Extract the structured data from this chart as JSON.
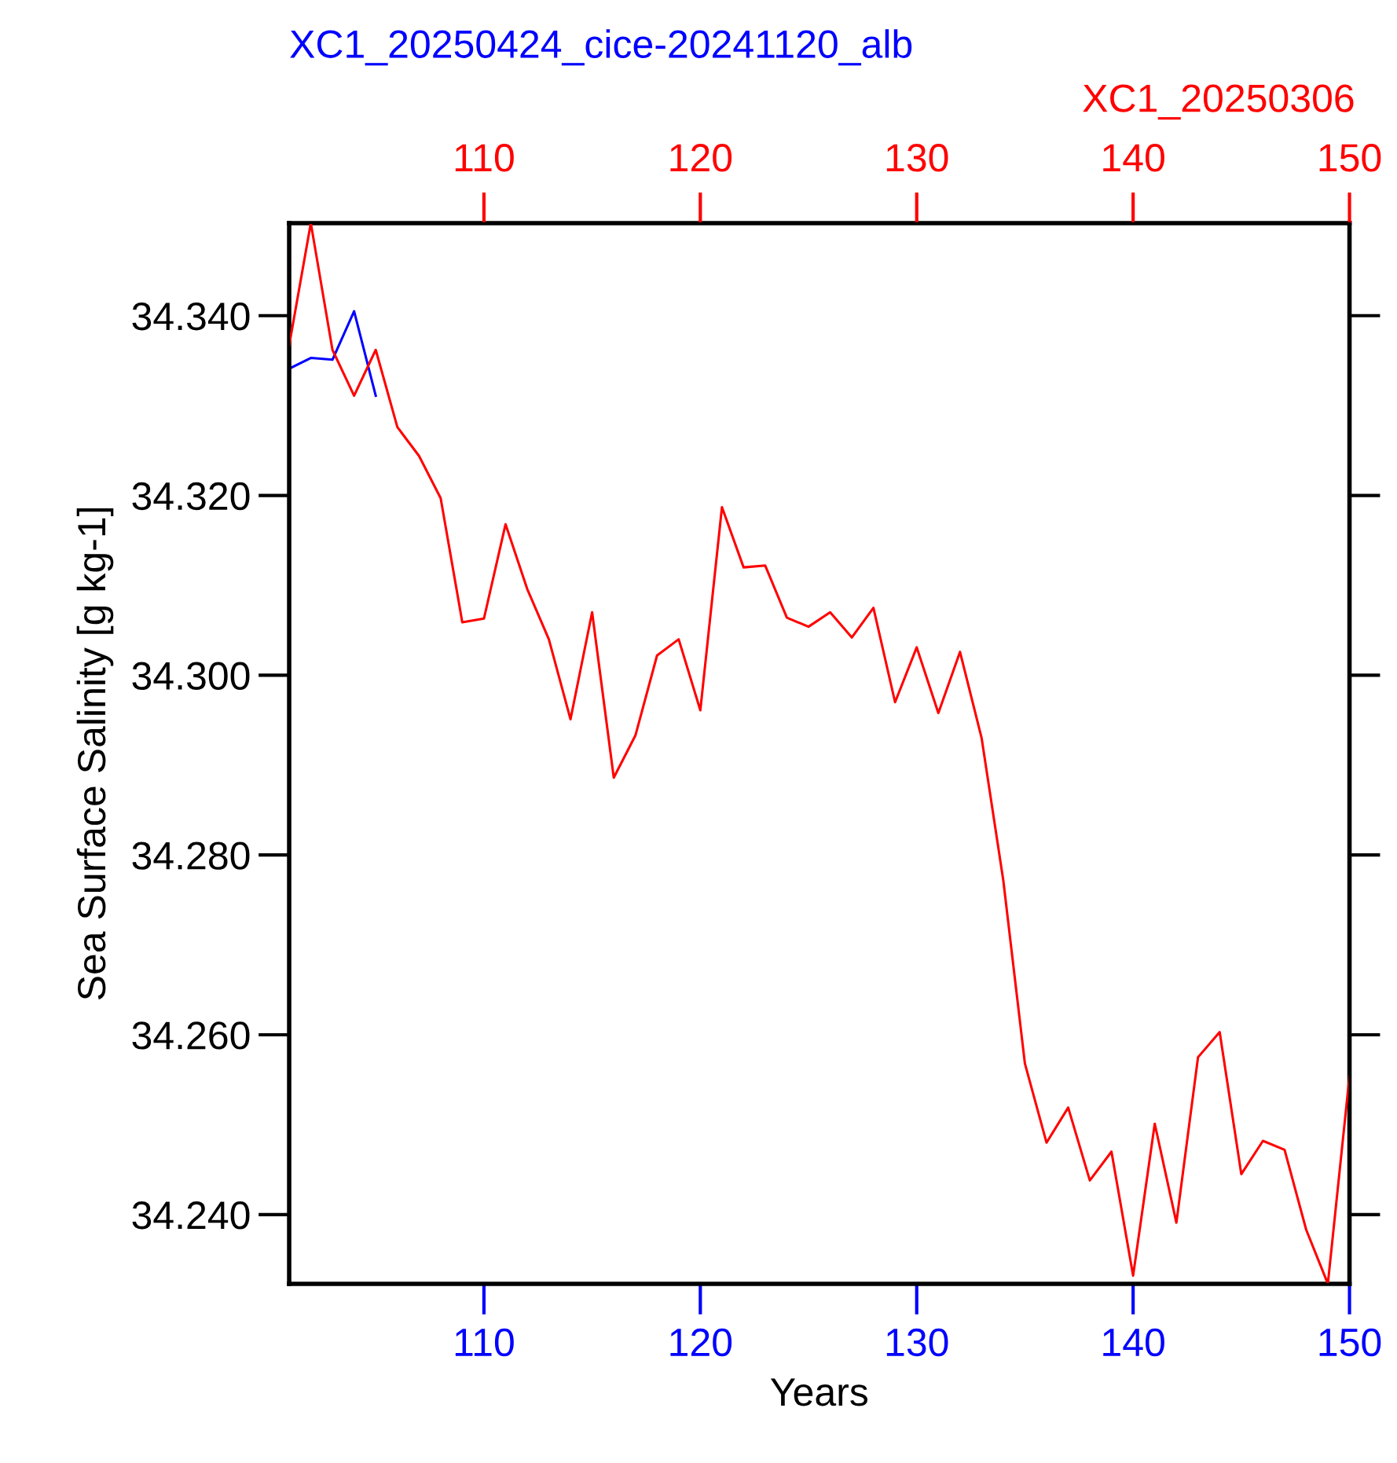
{
  "chart_data": {
    "type": "line",
    "xlabel": "Years",
    "ylabel": "Sea Surface Salinity [g kg-1]",
    "grid": false,
    "legend": false,
    "marker": "none",
    "line_style": "solid",
    "xlim": [
      101,
      150
    ],
    "x2lim": [
      101,
      150
    ],
    "ylim": [
      34.2323,
      34.3503
    ],
    "xticks": [
      110,
      120,
      130,
      140,
      150
    ],
    "x2ticks": [
      110,
      120,
      130,
      140,
      150
    ],
    "yticks": [
      {
        "value": 34.24,
        "label": "34.240"
      },
      {
        "value": 34.26,
        "label": "34.260"
      },
      {
        "value": 34.28,
        "label": "34.280"
      },
      {
        "value": 34.3,
        "label": "34.300"
      },
      {
        "value": 34.32,
        "label": "34.320"
      },
      {
        "value": 34.34,
        "label": "34.340"
      }
    ],
    "series": [
      {
        "name": "XC1_20250424_cice-20241120_alb",
        "color": "#0000ff",
        "x": [
          101,
          102,
          103,
          104,
          105
        ],
        "values": [
          34.3341,
          34.3353,
          34.3351,
          34.3405,
          34.3311
        ]
      },
      {
        "name": "XC1_20250306",
        "color": "#ff0000",
        "axis": "x2",
        "x": [
          101,
          102,
          103,
          104,
          105,
          106,
          107,
          108,
          109,
          110,
          111,
          112,
          113,
          114,
          115,
          116,
          117,
          118,
          119,
          120,
          121,
          122,
          123,
          124,
          125,
          126,
          127,
          128,
          129,
          130,
          131,
          132,
          133,
          134,
          135,
          136,
          137,
          138,
          139,
          140,
          141,
          142,
          143,
          144,
          145,
          146,
          147,
          148,
          149,
          150
        ],
        "values": [
          34.3367,
          34.3503,
          34.3362,
          34.3311,
          34.3362,
          34.3276,
          34.3244,
          34.3197,
          34.3059,
          34.3063,
          34.3168,
          34.3096,
          34.304,
          34.2951,
          34.307,
          34.2886,
          34.2933,
          34.3022,
          34.304,
          34.2961,
          34.3187,
          34.312,
          34.3122,
          34.3064,
          34.3054,
          34.307,
          34.3042,
          34.3075,
          34.297,
          34.3031,
          34.2958,
          34.3026,
          34.293,
          34.2772,
          34.2568,
          34.248,
          34.2519,
          34.2438,
          34.247,
          34.2332,
          34.2501,
          34.2391,
          34.2575,
          34.2603,
          34.2445,
          34.2482,
          34.2472,
          34.2383,
          34.2323,
          34.2554
        ]
      }
    ]
  }
}
